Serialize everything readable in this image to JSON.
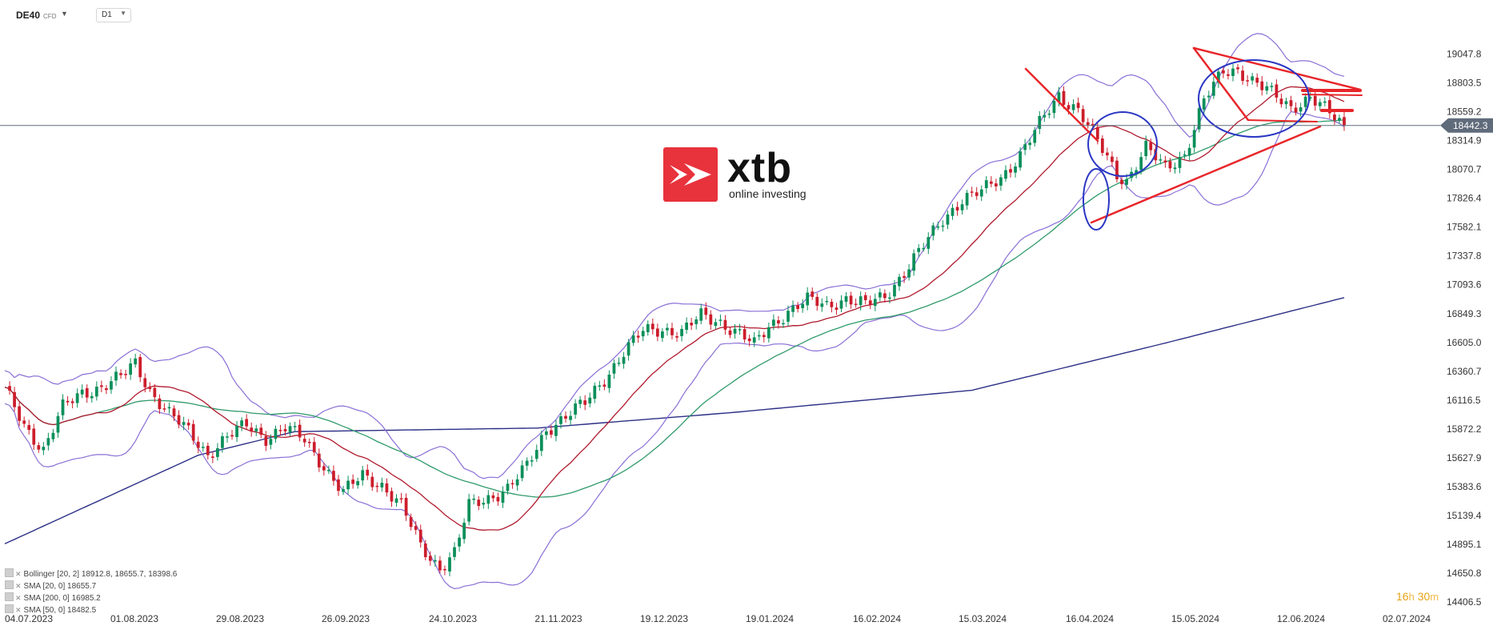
{
  "header": {
    "symbol": "DE40",
    "symbol_type": "CFD",
    "timeframe": "D1"
  },
  "logo": {
    "wordmark": "xtb",
    "tagline": "online investing",
    "brand_color": "#e8323c"
  },
  "legend": {
    "bollinger": "Bollinger  [20, 2]  18912.8,   18655.7,   18398.6",
    "sma20": "SMA  [20, 0]  18655.7",
    "sma200": "SMA  [200, 0]  16985.2",
    "sma50": "SMA  [50, 0]  18482.5"
  },
  "countdown": {
    "hours": "16",
    "h_unit": "h",
    "minutes": "30",
    "m_unit": "m"
  },
  "colors": {
    "up_candle": "#0a8f5a",
    "down_candle": "#cc1d2c",
    "sma20": "#b01a2e",
    "sma50": "#2f9a6a",
    "sma200": "#2c2f86",
    "bollinger": "#8a6fd6",
    "annotation_red": "#e8262a",
    "annotation_blue": "#2a36c4",
    "price_line": "#5f6b7a",
    "price_tag_bg": "#5f6b7a"
  },
  "chart_data": {
    "type": "candlestick",
    "instrument": "DE40",
    "timeframe": "D1",
    "current_price": 18442.3,
    "current_price_label": "18442.3",
    "yaxis_ticks": [
      19047.8,
      18803.5,
      18559.2,
      18314.9,
      18070.7,
      17826.4,
      17582.1,
      17337.8,
      17093.6,
      16849.3,
      16605.0,
      16360.7,
      16116.5,
      15872.2,
      15627.9,
      15383.6,
      15139.4,
      14895.1,
      14650.8,
      14406.5
    ],
    "yaxis_labels": [
      "19047.8",
      "18803.5",
      "18559.2",
      "18314.9",
      "18070.7",
      "17826.4",
      "17582.1",
      "17337.8",
      "17093.6",
      "16849.3",
      "16605.0",
      "16360.7",
      "16116.5",
      "15872.2",
      "15627.9",
      "15383.6",
      "15139.4",
      "14895.1",
      "14650.8",
      "14406.5"
    ],
    "ylim": [
      14380,
      19180
    ],
    "x_ticks": [
      "04.07.2023",
      "01.08.2023",
      "29.08.2023",
      "26.09.2023",
      "24.10.2023",
      "21.11.2023",
      "19.12.2023",
      "19.01.2024",
      "16.02.2024",
      "15.03.2024",
      "16.04.2024",
      "15.05.2024",
      "12.06.2024",
      "02.07.2024"
    ],
    "close_path": [
      [
        0,
        16200
      ],
      [
        4,
        15900
      ],
      [
        8,
        15700
      ],
      [
        12,
        16050
      ],
      [
        16,
        16180
      ],
      [
        20,
        16230
      ],
      [
        24,
        16310
      ],
      [
        27,
        16430
      ],
      [
        30,
        16200
      ],
      [
        34,
        16000
      ],
      [
        38,
        15850
      ],
      [
        42,
        15660
      ],
      [
        46,
        15800
      ],
      [
        50,
        15910
      ],
      [
        54,
        15800
      ],
      [
        58,
        15880
      ],
      [
        62,
        15780
      ],
      [
        66,
        15560
      ],
      [
        70,
        15330
      ],
      [
        74,
        15480
      ],
      [
        78,
        15400
      ],
      [
        82,
        15220
      ],
      [
        86,
        14880
      ],
      [
        90,
        14700
      ],
      [
        93,
        14820
      ],
      [
        96,
        15220
      ],
      [
        100,
        15290
      ],
      [
        104,
        15370
      ],
      [
        108,
        15550
      ],
      [
        112,
        15870
      ],
      [
        116,
        15980
      ],
      [
        120,
        16090
      ],
      [
        124,
        16300
      ],
      [
        128,
        16520
      ],
      [
        132,
        16700
      ],
      [
        136,
        16720
      ],
      [
        140,
        16690
      ],
      [
        144,
        16830
      ],
      [
        148,
        16780
      ],
      [
        152,
        16680
      ],
      [
        155,
        16580
      ],
      [
        158,
        16740
      ],
      [
        162,
        16870
      ],
      [
        166,
        16960
      ],
      [
        170,
        16920
      ],
      [
        174,
        16980
      ],
      [
        178,
        16920
      ],
      [
        182,
        17000
      ],
      [
        186,
        17200
      ],
      [
        190,
        17420
      ],
      [
        194,
        17650
      ],
      [
        198,
        17820
      ],
      [
        202,
        17880
      ],
      [
        206,
        18000
      ],
      [
        210,
        18200
      ],
      [
        214,
        18450
      ],
      [
        218,
        18700
      ],
      [
        222,
        18580
      ],
      [
        226,
        18300
      ],
      [
        230,
        18030
      ],
      [
        232,
        17980
      ],
      [
        236,
        18250
      ],
      [
        240,
        18080
      ],
      [
        244,
        18200
      ],
      [
        248,
        18650
      ],
      [
        252,
        18900
      ],
      [
        255,
        18920
      ],
      [
        258,
        18820
      ],
      [
        262,
        18710
      ],
      [
        266,
        18600
      ],
      [
        270,
        18680
      ],
      [
        274,
        18540
      ],
      [
        277,
        18442
      ]
    ],
    "sma200_path": [
      [
        0,
        14900
      ],
      [
        40,
        15650
      ],
      [
        60,
        15850
      ],
      [
        110,
        15880
      ],
      [
        150,
        16010
      ],
      [
        200,
        16200
      ],
      [
        240,
        16600
      ],
      [
        277,
        16985
      ]
    ],
    "annotations": [
      "red lines: descending line from March 2024 high, triangle from May 2024 high, rising support line, horizontal levels near 18620 and 18500",
      "blue circles around consolidation in April and late May 2024, ellipse at April low"
    ]
  }
}
